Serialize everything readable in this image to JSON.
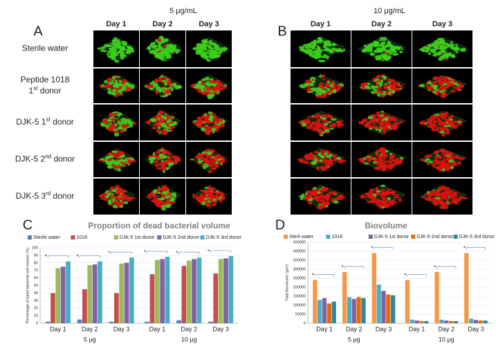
{
  "panels": [
    {
      "letter": "A",
      "title": "5 μg/mL",
      "columns": [
        "Day 1",
        "Day 2",
        "Day 3"
      ]
    },
    {
      "letter": "B",
      "title": "10 μg/mL",
      "columns": [
        "Day 1",
        "Day 2",
        "Day 3"
      ]
    }
  ],
  "rows": [
    [
      [
        {
          "text": "Sterile water"
        }
      ]
    ],
    [
      [
        {
          "text": "Peptide 1018"
        }
      ],
      [
        {
          "text": "1"
        },
        {
          "text": "st",
          "sup": true
        },
        {
          "text": " donor"
        }
      ]
    ],
    [
      [
        {
          "text": "DJK-5 1"
        },
        {
          "text": "st",
          "sup": true
        },
        {
          "text": " donor"
        }
      ]
    ],
    [
      [
        {
          "text": "DJK-5 2"
        },
        {
          "text": "nd",
          "sup": true
        },
        {
          "text": " donor"
        }
      ]
    ],
    [
      [
        {
          "text": "DJK-5 3"
        },
        {
          "text": "rd",
          "sup": true
        },
        {
          "text": " donor"
        }
      ]
    ]
  ],
  "chart_data": [
    {
      "type": "bar",
      "letter": "C",
      "title": "Proportion of dead bacterial volume",
      "y_label": "Percentage of dead bacterial cell volume (%)",
      "categories": [
        "Day 1",
        "Day 2",
        "Day 3",
        "Day 1",
        "Day 2",
        "Day 3"
      ],
      "group_labels": [
        "5 μg",
        "10 μg"
      ],
      "series": [
        {
          "name": "Sterile water",
          "color": "#4f81bd",
          "values": [
            2,
            5,
            2,
            2,
            4,
            2
          ]
        },
        {
          "name": "1018",
          "color": "#c0504d",
          "values": [
            40,
            45,
            40,
            65,
            76,
            66
          ]
        },
        {
          "name": "DJK-5 1st donor",
          "color": "#9bbb59",
          "values": [
            73,
            77,
            79,
            84,
            83,
            85
          ]
        },
        {
          "name": "DJK-5  2nd donor",
          "color": "#8064a2",
          "values": [
            75,
            78,
            80,
            85,
            85,
            86
          ]
        },
        {
          "name": "DJK-5 3rd donor",
          "color": "#4bacc6",
          "values": [
            82,
            82,
            87,
            88,
            87,
            89
          ]
        }
      ],
      "ylim": [
        0,
        100
      ],
      "yticks": [
        0,
        10,
        20,
        30,
        40,
        50,
        60,
        70,
        80,
        90,
        100
      ],
      "significance_marker": "*",
      "title_color": "#7f7f7f"
    },
    {
      "type": "bar",
      "letter": "D",
      "title": "Biovolume",
      "y_label": "Total biovolume (μm³)",
      "categories": [
        "Day 1",
        "Day 2",
        "Day 3",
        "Day 1",
        "Day 2",
        "Day 3"
      ],
      "group_labels": [
        "5 μg",
        "10 μg"
      ],
      "series": [
        {
          "name": "Steril water",
          "color": "#f79646",
          "values": [
            240000,
            285000,
            390000,
            240000,
            285000,
            390000
          ]
        },
        {
          "name": "1018",
          "color": "#4bacc6",
          "values": [
            130000,
            145000,
            215000,
            20000,
            20000,
            25000
          ]
        },
        {
          "name": "DJK-5 1st donor",
          "color": "#8064a2",
          "values": [
            140000,
            135000,
            180000,
            15000,
            15000,
            18000
          ]
        },
        {
          "name": "DJK-5 2nd donor",
          "color": "#e46c0a",
          "values": [
            110000,
            145000,
            160000,
            12000,
            12000,
            15000
          ]
        },
        {
          "name": "DJK-5 3rd donor",
          "color": "#31859c",
          "values": [
            120000,
            140000,
            155000,
            12000,
            12000,
            15000
          ]
        }
      ],
      "ylim": [
        0,
        450000
      ],
      "yticks": [
        0,
        50000,
        100000,
        150000,
        200000,
        250000,
        300000,
        350000,
        400000,
        450000
      ],
      "significance_marker": "*",
      "title_color": "#7f7f7f"
    }
  ]
}
